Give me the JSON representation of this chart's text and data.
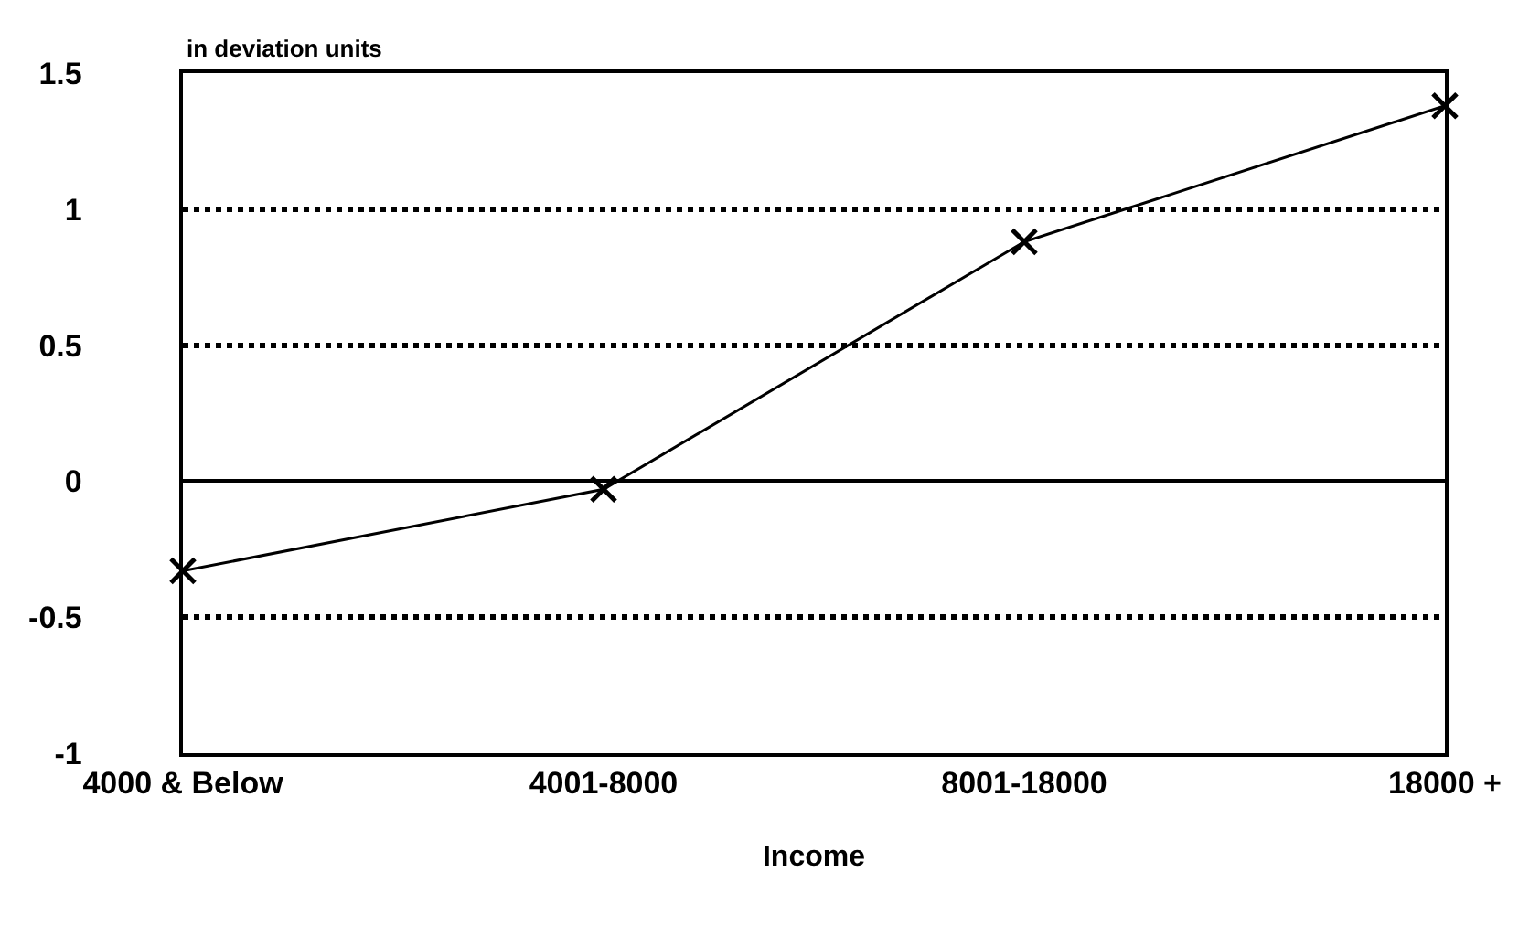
{
  "chart_data": {
    "type": "line",
    "xlabel": "Income",
    "ylabel": "in deviation units",
    "categories": [
      "4000 & Below",
      "4001-8000",
      "8001-18000",
      "18000 +"
    ],
    "series": [
      {
        "color": "#000000",
        "values": [
          -0.33,
          -0.03,
          0.88,
          1.38
        ]
      }
    ],
    "ylim": [
      -1,
      1.5
    ],
    "yticks": [
      -1,
      -0.5,
      0,
      0.5,
      1,
      1.5
    ],
    "grid": "y",
    "marker": "cross",
    "line_style": "solid"
  }
}
